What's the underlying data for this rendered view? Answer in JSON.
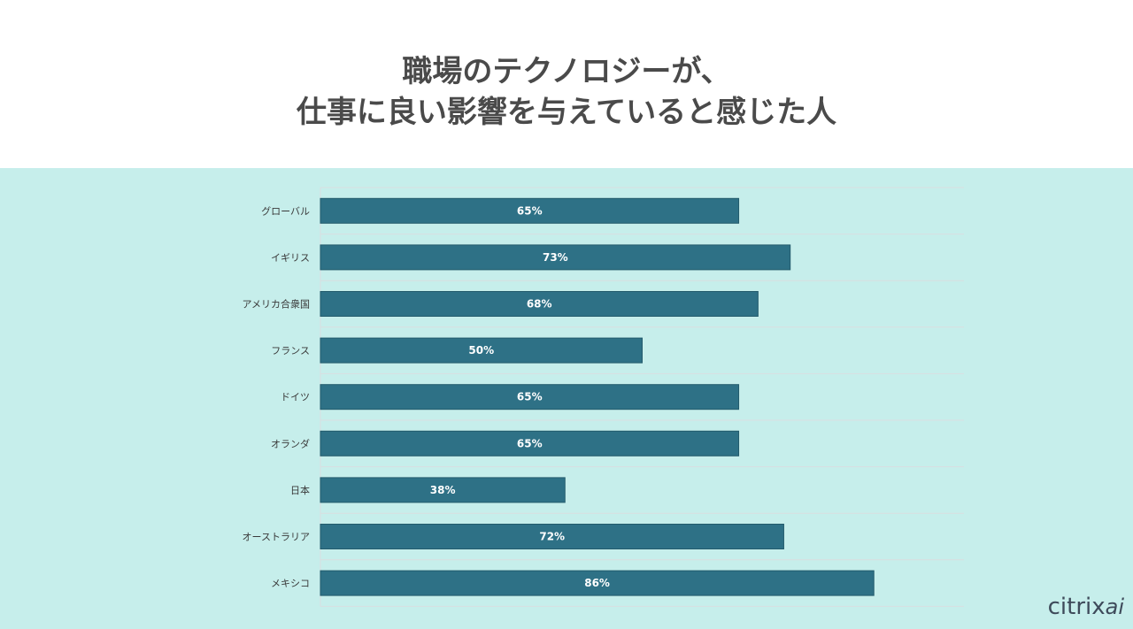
{
  "title_line1": "職場のテクノロジーが、",
  "title_line2": "仕事に良い影響を与えていると感じた人",
  "chart_data": {
    "type": "bar",
    "orientation": "horizontal",
    "categories": [
      "グローバル",
      "イギリス",
      "アメリカ合衆国",
      "フランス",
      "ドイツ",
      "オランダ",
      "日本",
      "オーストラリア",
      "メキシコ"
    ],
    "values": [
      65,
      73,
      68,
      50,
      65,
      65,
      38,
      72,
      86
    ],
    "value_labels": [
      "65%",
      "73%",
      "68%",
      "50%",
      "65%",
      "65%",
      "38%",
      "72%",
      "86%"
    ],
    "xlim": [
      0,
      100
    ],
    "grid": true,
    "bar_color": "#2e7186",
    "label_color": "#ffffff"
  },
  "logo": {
    "brand": "citrix",
    "suffix": "ai"
  }
}
